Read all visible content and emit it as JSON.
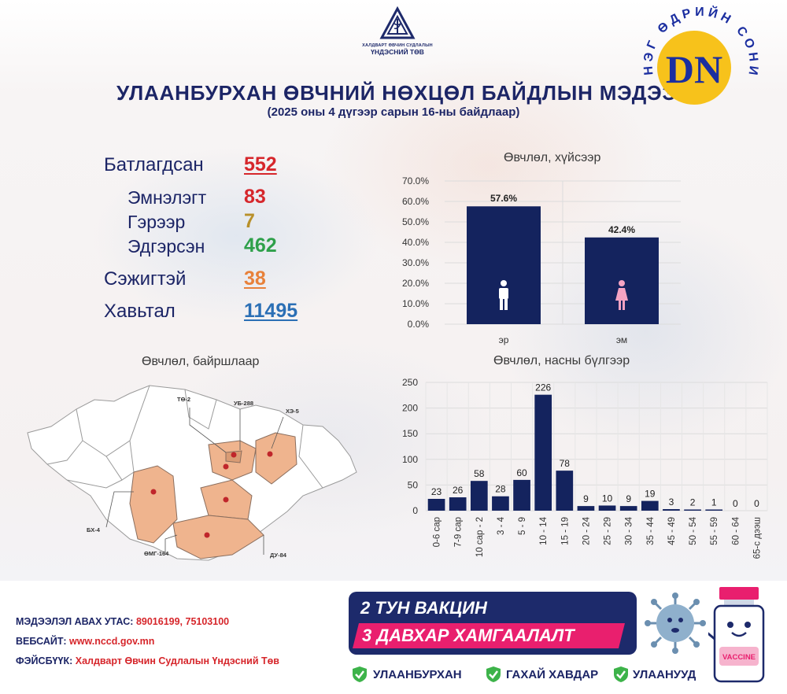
{
  "header": {
    "org_line1": "ХАЛДВАРТ ӨВЧИН СУДЛАЛЫН",
    "org_line2": "ҮНДЭСНИЙ ТӨВ",
    "title": "УЛААНБУРХАН ӨВЧНИЙ НӨХЦӨЛ БАЙДЛЫН МЭДЭЭ",
    "subtitle": "(2025 оны 4 дүгээр сарын 16-ны байдлаар)"
  },
  "stamp": {
    "logo_text": "DN",
    "ring_text": "НЭГ ӨДРИЙН СОНИН DAILY NEWS"
  },
  "stats": {
    "confirmed": {
      "label": "Батлагдсан",
      "value": "552",
      "color": "#d6262b"
    },
    "hospital": {
      "label": "Эмнэлэгт",
      "value": "83",
      "color": "#d6262b"
    },
    "home": {
      "label": "Гэрээр",
      "value": "7",
      "color": "#b8902a"
    },
    "recovered": {
      "label": "Эдгэрсэн",
      "value": "462",
      "color": "#2ea04a"
    },
    "suspected": {
      "label": "Сэжигтэй",
      "value": "38",
      "color": "#e8813a"
    },
    "contacts": {
      "label": "Хавьтал",
      "value": "11495",
      "color": "#2b6fb5"
    }
  },
  "map": {
    "title": "Өвчлөл, байршлаар",
    "labels": [
      "ТӨ-2",
      "УБ-288",
      "ХЭ-5",
      "БХ-4",
      "ӨМГ-164",
      "ДУ-84"
    ],
    "highlight_color": "#efb48e",
    "dot_color": "#c0262b"
  },
  "chart_data": [
    {
      "type": "bar",
      "title": "Өвчлөл, хүйсээр",
      "categories": [
        "эр",
        "эм"
      ],
      "values": [
        57.6,
        42.4
      ],
      "data_labels": [
        "57.6%",
        "42.4%"
      ],
      "ylim": [
        0,
        70
      ],
      "yticks": [
        "0.0%",
        "10.0%",
        "20.0%",
        "30.0%",
        "40.0%",
        "50.0%",
        "60.0%",
        "70.0%"
      ],
      "bar_color": "#14235e",
      "icons": [
        "male-icon",
        "female-icon"
      ],
      "grid": true
    },
    {
      "type": "bar",
      "title": "Өвчлөл, насны бүлгээр",
      "categories": [
        "0-6 сар",
        "7-9 сар",
        "10 сар - 2",
        "3 - 4",
        "5 - 9",
        "10 - 14",
        "15 - 19",
        "20 - 24",
        "25 - 29",
        "30 - 34",
        "35 - 44",
        "45 - 49",
        "50 - 54",
        "55 - 59",
        "60 - 64",
        "65-с дээш"
      ],
      "values": [
        23,
        26,
        58,
        28,
        60,
        226,
        78,
        9,
        10,
        9,
        19,
        3,
        2,
        1,
        0,
        0
      ],
      "ylim": [
        0,
        250
      ],
      "yticks": [
        "0",
        "50",
        "100",
        "150",
        "200",
        "250"
      ],
      "bar_color": "#14235e",
      "grid": true
    }
  ],
  "footer": {
    "phone_label": "МЭДЭЭЛЭЛ АВАХ УТАС:",
    "phone_value": "89016199,  75103100",
    "web_label": "ВЕБСАЙТ:",
    "web_value": "www.nccd.gov.mn",
    "fb_label": "ФЭЙСБҮҮК:",
    "fb_value": "Халдварт Өвчин Судлалын Үндэсний Төв"
  },
  "campaign": {
    "line1": "2 ТУН ВАКЦИН",
    "line2": "3 ДАВХАР ХАМГААЛАЛТ",
    "regions": [
      "УЛААНБУРХАН",
      "ГАХАЙ ХАВДАР",
      "УЛААНУУД"
    ],
    "vaccine_label": "VACCINE",
    "accent_pink": "#e91f6e",
    "accent_navy": "#1d2a6b",
    "check_color": "#3db34a"
  }
}
